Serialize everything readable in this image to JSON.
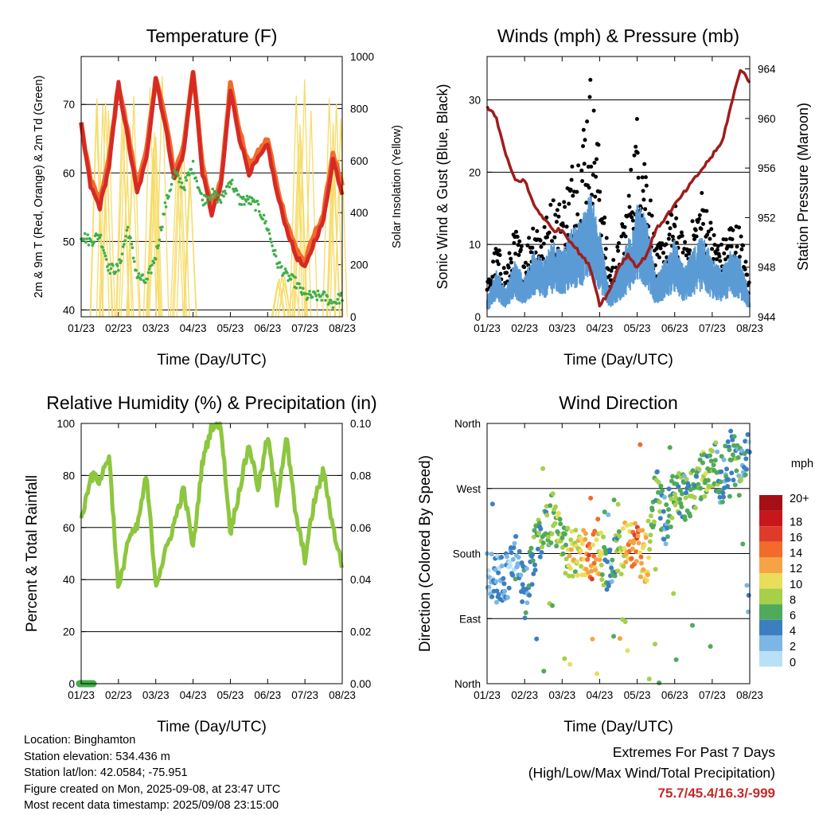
{
  "colors": {
    "t2m": "#d62a25",
    "t9m": "#f26b2a",
    "dewpoint": "#3fae49",
    "solar": "#f7dc6a",
    "wind": "#5b9bd5",
    "gust": "#000000",
    "pressure": "#a01c1c",
    "humidity": "#8dc63f",
    "precip": "#3fae49",
    "extremes": "#c62828"
  },
  "wind_speed_colorbar": {
    "unit": "mph",
    "labels": [
      "20+",
      "18",
      "16",
      "14",
      "12",
      "10",
      "8",
      "6",
      "4",
      "2",
      "0"
    ],
    "colors": [
      "#a50f15",
      "#c8171c",
      "#e03b2a",
      "#f26b2a",
      "#f6a345",
      "#e8de5a",
      "#a6cf4a",
      "#4faa5a",
      "#3b7fc0",
      "#7cb6e4",
      "#b9e1f6"
    ]
  },
  "chart_data": [
    {
      "type": "line",
      "title": "Temperature (F)",
      "xlabel": "Time (Day/UTC)",
      "ylabel": "2m & 9m T (Red, Orange) & 2m Td (Green)",
      "y2label": "Solar Insolation (Yellow)",
      "x_ticks": [
        "01/23",
        "02/23",
        "03/23",
        "04/23",
        "05/23",
        "06/23",
        "07/23",
        "08/23"
      ],
      "ylim": [
        39,
        77
      ],
      "y_ticks": [
        40,
        50,
        60,
        70
      ],
      "y2lim": [
        0,
        1000
      ],
      "y2_ticks": [
        0,
        200,
        400,
        600,
        800,
        1000
      ],
      "x": [
        0,
        0.25,
        0.5,
        0.75,
        1.0,
        1.25,
        1.5,
        1.75,
        2.0,
        2.25,
        2.5,
        2.75,
        3.0,
        3.25,
        3.5,
        3.75,
        4.0,
        4.25,
        4.5,
        4.75,
        5.0,
        5.25,
        5.5,
        5.75,
        6.0,
        6.25,
        6.5,
        6.75,
        7.0
      ],
      "series": [
        {
          "name": "2m T",
          "values": [
            67,
            58,
            55,
            61,
            73,
            65,
            57,
            62,
            74,
            67,
            59,
            63,
            75,
            60,
            54,
            58,
            72,
            65,
            60,
            62,
            64,
            57,
            52,
            48,
            46,
            50,
            53,
            62,
            57
          ]
        },
        {
          "name": "9m T",
          "values": [
            67,
            59,
            56,
            62,
            73,
            66,
            58,
            63,
            74,
            68,
            60,
            64,
            75,
            61,
            55,
            59,
            73,
            66,
            61,
            63,
            65,
            58,
            53,
            49,
            47,
            51,
            54,
            63,
            58
          ]
        },
        {
          "name": "2m Td",
          "values": [
            51,
            50,
            51,
            46,
            46,
            52,
            45,
            44,
            48,
            55,
            60,
            58,
            61,
            56,
            57,
            56,
            59,
            56,
            56,
            55,
            52,
            47,
            45,
            44,
            42,
            42,
            42,
            41,
            42
          ]
        },
        {
          "name": "Solar Insolation",
          "axis": "y2",
          "values": [
            0,
            0,
            950,
            0,
            0,
            900,
            0,
            0,
            960,
            0,
            0,
            700,
            0,
            0,
            0,
            0,
            0,
            0,
            0,
            0,
            0,
            0,
            180,
            0,
            1000,
            0,
            0,
            990,
            0
          ]
        }
      ]
    },
    {
      "type": "scatter",
      "title": "Winds (mph) & Pressure (mb)",
      "xlabel": "Time (Day/UTC)",
      "ylabel": "Sonic Wind & Gust (Blue, Black)",
      "y2label": "Station Pressure (Maroon)",
      "x_ticks": [
        "01/23",
        "02/23",
        "03/23",
        "04/23",
        "05/23",
        "06/23",
        "07/23",
        "08/23"
      ],
      "ylim": [
        0,
        36
      ],
      "y_ticks": [
        0,
        10,
        20,
        30
      ],
      "y2lim": [
        944,
        965
      ],
      "y2_ticks": [
        944,
        948,
        952,
        956,
        960,
        964
      ],
      "x": [
        0,
        0.25,
        0.5,
        0.75,
        1.0,
        1.25,
        1.5,
        1.75,
        2.0,
        2.25,
        2.5,
        2.75,
        3.0,
        3.25,
        3.5,
        3.75,
        4.0,
        4.25,
        4.5,
        4.75,
        5.0,
        5.25,
        5.5,
        5.75,
        6.0,
        6.25,
        6.5,
        6.75,
        7.0
      ],
      "series": [
        {
          "name": "Sonic Wind",
          "values": [
            2,
            5,
            3,
            6,
            4,
            7,
            6,
            8,
            7,
            9,
            10,
            13,
            9,
            3,
            5,
            8,
            12,
            10,
            4,
            6,
            8,
            5,
            7,
            9,
            6,
            5,
            7,
            6,
            2
          ]
        },
        {
          "name": "Gust",
          "values": [
            4,
            9,
            6,
            11,
            8,
            13,
            11,
            15,
            14,
            19,
            22,
            30,
            20,
            6,
            9,
            15,
            25,
            20,
            8,
            11,
            14,
            9,
            12,
            16,
            11,
            9,
            12,
            11,
            4
          ]
        },
        {
          "name": "Station Pressure",
          "axis": "y2",
          "values": [
            961,
            960,
            957,
            955,
            955,
            953,
            952,
            951,
            951,
            950,
            949,
            948,
            945,
            946,
            948,
            949,
            948,
            949,
            951,
            952,
            953,
            954,
            955,
            956,
            957,
            958,
            961,
            964,
            963
          ]
        }
      ]
    },
    {
      "type": "line",
      "title": "Relative Humidity (%) & Precipitation (in)",
      "xlabel": "Time (Day/UTC)",
      "ylabel": "Percent & Total Rainfall",
      "x_ticks": [
        "01/23",
        "02/23",
        "03/23",
        "04/23",
        "05/23",
        "06/23",
        "07/23",
        "08/23"
      ],
      "ylim": [
        0,
        100
      ],
      "y_ticks": [
        0,
        20,
        40,
        60,
        80,
        100
      ],
      "y2lim": [
        0,
        0.1
      ],
      "y2_ticks": [
        "0.00",
        "0.02",
        "0.04",
        "0.06",
        "0.08",
        "0.10"
      ],
      "x": [
        0,
        0.25,
        0.5,
        0.75,
        1.0,
        1.25,
        1.5,
        1.75,
        2.0,
        2.25,
        2.5,
        2.75,
        3.0,
        3.25,
        3.5,
        3.75,
        4.0,
        4.25,
        4.5,
        4.75,
        5.0,
        5.25,
        5.5,
        5.75,
        6.0,
        6.25,
        6.5,
        6.75,
        7.0
      ],
      "series": [
        {
          "name": "Relative Humidity",
          "values": [
            62,
            80,
            78,
            88,
            35,
            55,
            60,
            80,
            38,
            50,
            62,
            75,
            52,
            85,
            99,
            99,
            58,
            75,
            92,
            75,
            95,
            70,
            95,
            65,
            48,
            70,
            82,
            60,
            45
          ]
        },
        {
          "name": "Total Rainfall",
          "axis": "y2",
          "values": [
            0,
            0,
            0,
            0,
            0,
            0,
            0,
            0,
            0,
            0,
            0,
            0,
            0,
            0,
            0,
            0,
            0,
            0,
            0,
            0,
            0,
            0,
            0,
            0,
            0,
            0,
            0,
            0,
            0
          ]
        }
      ]
    },
    {
      "type": "scatter",
      "title": "Wind Direction",
      "xlabel": "Time (Day/UTC)",
      "ylabel": "Direction (Colored By Speed)",
      "x_ticks": [
        "01/23",
        "02/23",
        "03/23",
        "04/23",
        "05/23",
        "06/23",
        "07/23",
        "08/23"
      ],
      "y_tick_labels": [
        "North",
        "East",
        "South",
        "West",
        "North"
      ],
      "ylim": [
        0,
        360
      ],
      "x": [
        0,
        0.25,
        0.5,
        0.75,
        1.0,
        1.25,
        1.5,
        1.75,
        2.0,
        2.25,
        2.5,
        2.75,
        3.0,
        3.25,
        3.5,
        3.75,
        4.0,
        4.25,
        4.5,
        4.75,
        5.0,
        5.25,
        5.5,
        5.75,
        6.0,
        6.25,
        6.5,
        6.75,
        7.0
      ],
      "direction": [
        160,
        145,
        150,
        175,
        120,
        185,
        210,
        230,
        185,
        180,
        182,
        178,
        185,
        150,
        180,
        195,
        190,
        170,
        280,
        220,
        270,
        260,
        270,
        290,
        310,
        280,
        320,
        290,
        340
      ],
      "speed": [
        2,
        3,
        2,
        3,
        4,
        5,
        6,
        7,
        8,
        9,
        10,
        14,
        10,
        2,
        8,
        12,
        14,
        10,
        6,
        4,
        7,
        5,
        6,
        8,
        6,
        4,
        5,
        5,
        3
      ]
    }
  ],
  "info": {
    "location": "Location: Binghamton",
    "elevation": "Station elevation: 534.436 m",
    "latlon": "Station lat/lon: 42.0584; -75.951",
    "created": "Figure created on Mon, 2025-09-08, at 23:47 UTC",
    "recent": "Most recent data timestamp: 2025/09/08 23:15:00"
  },
  "extremes": {
    "title": "Extremes For Past 7 Days",
    "subtitle": "(High/Low/Max Wind/Total Precipitation)",
    "values": "75.7/45.4/16.3/-999"
  }
}
